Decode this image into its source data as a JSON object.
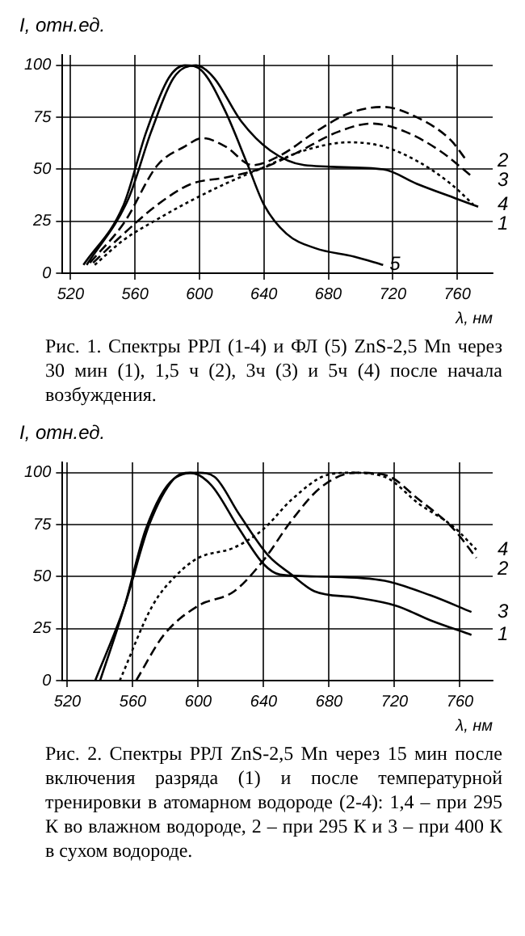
{
  "chart_data": [
    {
      "type": "line",
      "ylabel": "I, отн.ед.",
      "xlabel": "λ, нм",
      "xlim": [
        515,
        782
      ],
      "ylim": [
        0,
        105
      ],
      "xticks": [
        520,
        560,
        600,
        640,
        680,
        720,
        760
      ],
      "yticks": [
        0,
        25,
        50,
        75,
        100
      ],
      "grid": true,
      "legend": false,
      "marker": "none",
      "annotations": [
        "Рис. 1. Спектры РРЛ (1-4) и ФЛ (5) ZnS-2,5 Mn через 30 мин (1), 1,5 ч (2), 3ч (3) и 5ч (4) после начала возбуждения."
      ],
      "series": [
        {
          "name": "1",
          "color": "#000000",
          "line_style": "solid",
          "x": [
            530,
            556,
            570,
            584,
            598,
            609,
            626,
            644,
            665,
            714,
            735,
            759,
            773
          ],
          "values": [
            4,
            36,
            68,
            94,
            100,
            94,
            73,
            59,
            52,
            50,
            43,
            36,
            32
          ]
        },
        {
          "name": "2",
          "color": "#000000",
          "line_style": "dashed",
          "x": [
            532,
            553,
            574,
            591,
            602,
            616,
            633,
            651,
            672,
            693,
            714,
            735,
            756,
            766
          ],
          "values": [
            5,
            24,
            52,
            61,
            65,
            61,
            52,
            57,
            68,
            77,
            80,
            75,
            64,
            54
          ]
        },
        {
          "name": "3",
          "color": "#000000",
          "line_style": "dashed",
          "x": [
            534,
            553,
            574,
            595,
            616,
            637,
            658,
            686,
            707,
            728,
            749,
            770
          ],
          "values": [
            5,
            19,
            33,
            43,
            46,
            50,
            57,
            68,
            72,
            68,
            59,
            46
          ]
        },
        {
          "name": "4",
          "color": "#000000",
          "line_style": "dotted",
          "x": [
            535,
            553,
            574,
            595,
            616,
            637,
            665,
            693,
            714,
            735,
            756,
            770
          ],
          "values": [
            4,
            16,
            26,
            35,
            43,
            50,
            59,
            63,
            61,
            54,
            43,
            33
          ]
        },
        {
          "name": "5",
          "color": "#000000",
          "line_style": "solid",
          "x": [
            528,
            553,
            567,
            581,
            591,
            602,
            616,
            630,
            640,
            654,
            672,
            696,
            714
          ],
          "values": [
            4,
            33,
            68,
            94,
            100,
            97,
            78,
            52,
            33,
            19,
            12,
            8,
            4
          ]
        }
      ]
    },
    {
      "type": "line",
      "ylabel": "I, отн.ед.",
      "xlabel": "λ, нм",
      "xlim": [
        517,
        780
      ],
      "ylim": [
        0,
        105
      ],
      "xticks": [
        520,
        560,
        600,
        640,
        680,
        720,
        760
      ],
      "yticks": [
        0,
        25,
        50,
        75,
        100
      ],
      "grid": true,
      "legend": false,
      "marker": "none",
      "annotations": [
        "Рис. 2. Спектры РРЛ ZnS-2,5 Mn через 15 мин после включения разряда (1) и после температурной тренировки в атомарном водороде (2-4): 1,4 – при 295 К во влажном водороде, 2 – при 295 К и 3 – при 400 К в сухом водороде."
      ],
      "series": [
        {
          "name": "1",
          "color": "#000000",
          "line_style": "solid",
          "x": [
            540,
            555,
            568,
            585,
            600,
            610,
            625,
            643,
            657,
            671,
            696,
            721,
            742,
            767
          ],
          "values": [
            0,
            36,
            73,
            97,
            100,
            98,
            80,
            60,
            51,
            43,
            40,
            36,
            29,
            22
          ]
        },
        {
          "name": "2",
          "color": "#000000",
          "line_style": "dashed",
          "x": [
            562,
            579,
            600,
            622,
            640,
            657,
            675,
            696,
            714,
            735,
            756,
            770
          ],
          "values": [
            0,
            22,
            36,
            43,
            58,
            77,
            93,
            100,
            99,
            87,
            73,
            59
          ]
        },
        {
          "name": "3",
          "color": "#000000",
          "line_style": "solid",
          "x": [
            537,
            555,
            570,
            585,
            595,
            608,
            625,
            640,
            650,
            679,
            714,
            742,
            767
          ],
          "values": [
            0,
            36,
            75,
            97,
            100,
            94,
            73,
            56,
            51,
            50,
            48,
            41,
            33
          ]
        },
        {
          "name": "4",
          "color": "#000000",
          "line_style": "dotted",
          "x": [
            552,
            572,
            587,
            600,
            622,
            640,
            657,
            679,
            693,
            714,
            735,
            756,
            770
          ],
          "values": [
            0,
            36,
            51,
            59,
            64,
            73,
            87,
            99,
            100,
            98,
            85,
            74,
            63
          ]
        }
      ]
    }
  ]
}
